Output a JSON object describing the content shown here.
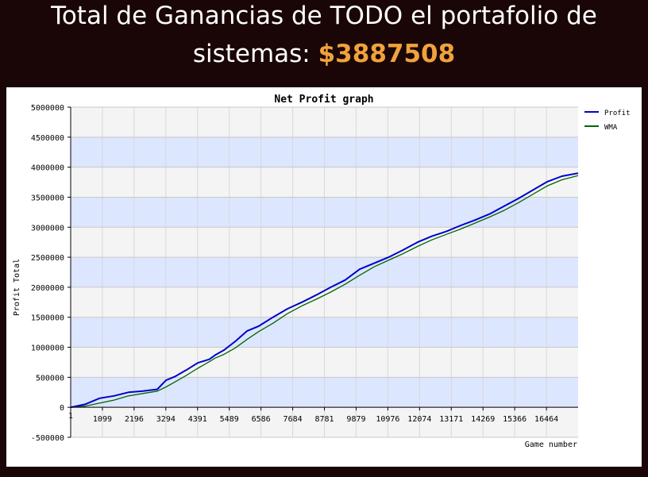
{
  "header": {
    "title_line1": "Total de Ganancias de TODO el portafolio de",
    "title_line2_prefix": "sistemas: ",
    "title_amount": "$3887508"
  },
  "colors": {
    "background": "#1a0606",
    "amount": "#f0a23c",
    "band_light": "#f4f4f4",
    "band_blue": "#dde6ff",
    "profit_line": "#0000cc",
    "wma_line": "#006600"
  },
  "chart_data": {
    "type": "line",
    "title": "Net Profit graph",
    "xlabel": "Game number",
    "ylabel": "Profit Total",
    "xlim": [
      1,
      17560
    ],
    "ylim": [
      -500000,
      5000000
    ],
    "x_ticks": [
      "1",
      "1099",
      "2196",
      "3294",
      "4391",
      "5489",
      "6586",
      "7684",
      "8781",
      "9879",
      "10976",
      "12074",
      "13171",
      "14269",
      "15366",
      "16464"
    ],
    "y_ticks": [
      "5000000",
      "4500000",
      "4000000",
      "3500000",
      "3000000",
      "2500000",
      "2000000",
      "1500000",
      "1000000",
      "500000",
      "0",
      "-500000"
    ],
    "legend_position": "top-right",
    "x": [
      1,
      500,
      1000,
      1500,
      2000,
      2500,
      3000,
      3300,
      3600,
      4000,
      4400,
      4800,
      5000,
      5300,
      5700,
      6100,
      6500,
      7000,
      7500,
      8000,
      8500,
      9000,
      9500,
      10000,
      10500,
      11000,
      11500,
      12000,
      12500,
      13000,
      13500,
      14000,
      14500,
      15000,
      15500,
      16000,
      16500,
      17000,
      17560
    ],
    "series": [
      {
        "name": "Profit",
        "color": "#0000cc",
        "values": [
          0,
          50000,
          150000,
          190000,
          250000,
          270000,
          300000,
          450000,
          510000,
          620000,
          740000,
          800000,
          870000,
          950000,
          1100000,
          1270000,
          1350000,
          1500000,
          1640000,
          1750000,
          1870000,
          2000000,
          2120000,
          2300000,
          2400000,
          2500000,
          2620000,
          2750000,
          2850000,
          2930000,
          3030000,
          3120000,
          3220000,
          3350000,
          3480000,
          3620000,
          3760000,
          3850000,
          3900000
        ]
      },
      {
        "name": "WMA",
        "color": "#006600",
        "values": [
          0,
          20000,
          70000,
          120000,
          190000,
          230000,
          270000,
          340000,
          420000,
          530000,
          650000,
          760000,
          820000,
          880000,
          990000,
          1130000,
          1260000,
          1400000,
          1560000,
          1690000,
          1800000,
          1920000,
          2050000,
          2200000,
          2340000,
          2450000,
          2560000,
          2680000,
          2790000,
          2880000,
          2970000,
          3070000,
          3170000,
          3280000,
          3410000,
          3550000,
          3690000,
          3790000,
          3860000
        ]
      }
    ]
  }
}
